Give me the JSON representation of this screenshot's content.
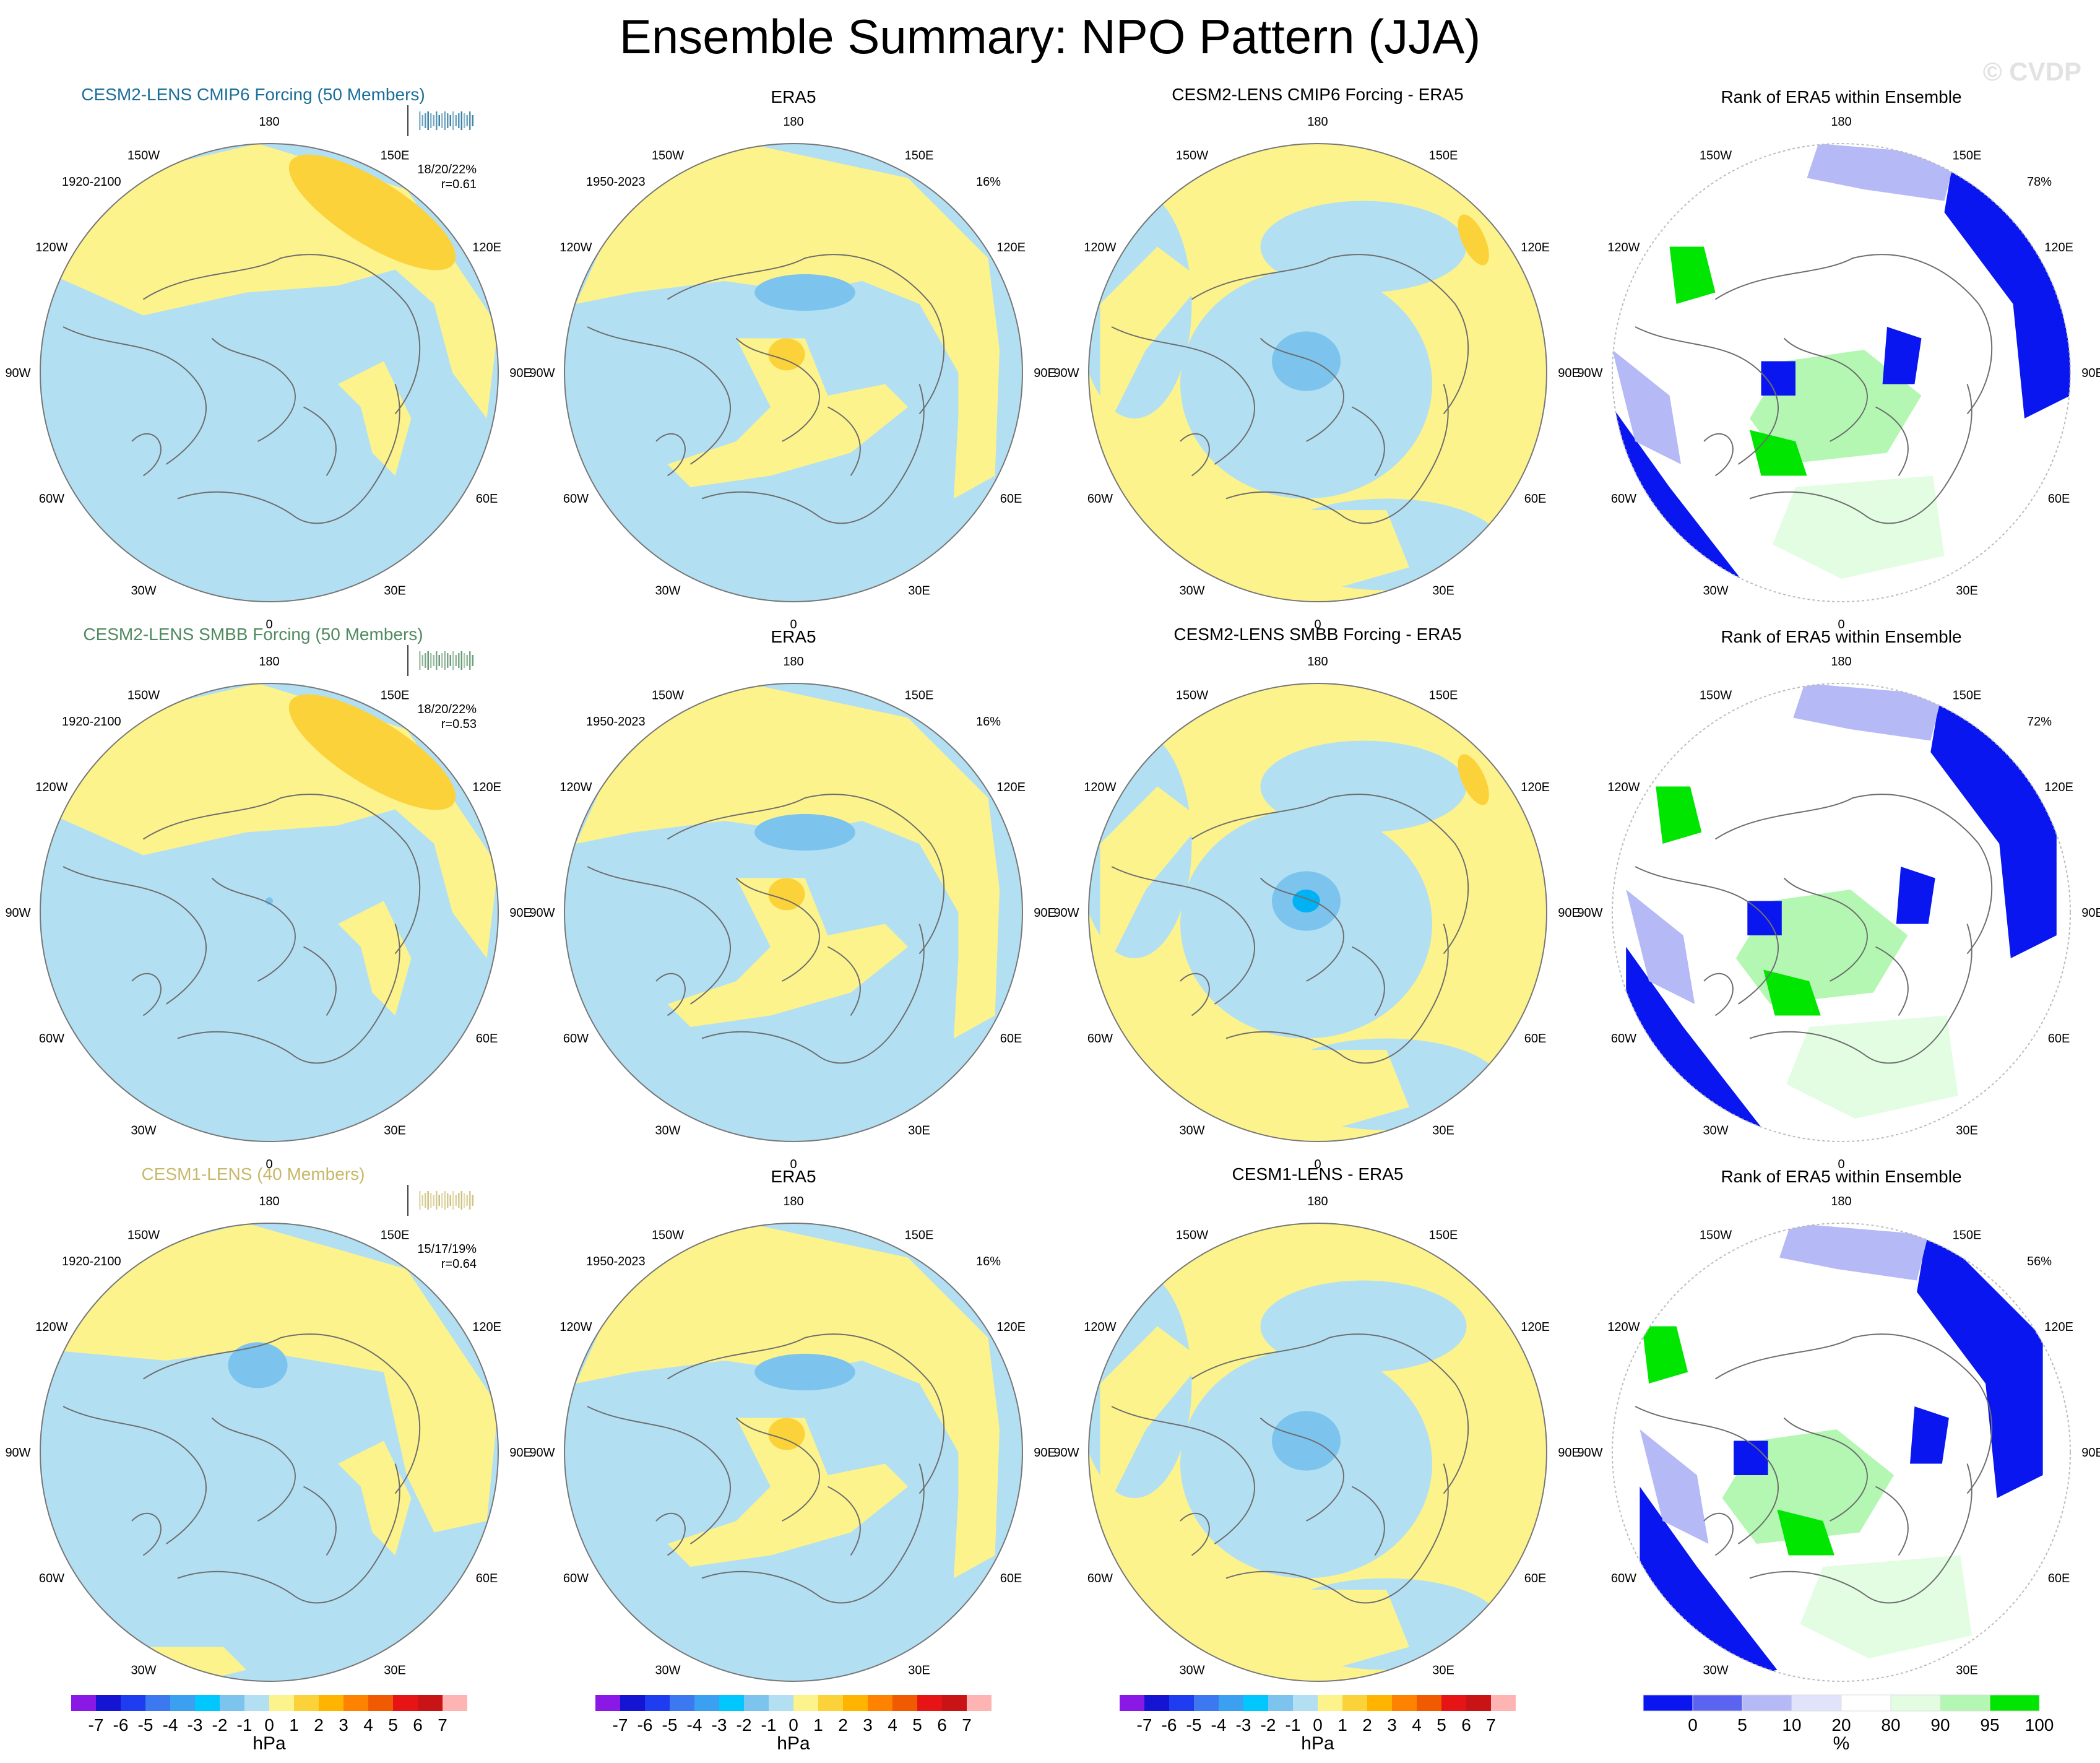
{
  "title": "Ensemble Summary: NPO Pattern (JJA)",
  "watermark": "© CVDP",
  "colors": {
    "model_title_1": "#1a6e9a",
    "model_title_2": "#4f8a5f",
    "model_title_3": "#c7b868",
    "land_outline": "#6e6e6e",
    "cat_neg_light": "#b3dff2",
    "cat_neg_mid": "#7cc4ed",
    "cat_neg_strong": "#00b2f4",
    "cat_pos_light": "#fdf38c",
    "cat_pos_mid": "#fcd23a",
    "rank_0": "#0a16f0",
    "rank_5": "#5a64f0",
    "rank_10": "#b5b9f5",
    "rank_20": "#e1e3fb",
    "rank_80": "#ffffff",
    "rank_90": "#e2fde2",
    "rank_95": "#b3f7b3",
    "rank_100": "#00e600"
  },
  "lon_labels": [
    "180",
    "150E",
    "120E",
    "90E",
    "60E",
    "30E",
    "0",
    "30W",
    "60W",
    "90W",
    "120W",
    "150W"
  ],
  "rows": [
    {
      "model": {
        "title": "CESM2-LENS CMIP6 Forcing (50 Members)",
        "period": "1920-2100",
        "stat": "18/20/22%",
        "corr": "r=0.61",
        "title_color": "#1a6e9a"
      },
      "obs": {
        "title": "ERA5",
        "period": "1950-2023",
        "pct": "16%"
      },
      "diff": {
        "title": "CESM2-LENS CMIP6 Forcing - ERA5"
      },
      "rank": {
        "title": "Rank of ERA5 within Ensemble",
        "pct": "78%"
      }
    },
    {
      "model": {
        "title": "CESM2-LENS SMBB Forcing (50 Members)",
        "period": "1920-2100",
        "stat": "18/20/22%",
        "corr": "r=0.53",
        "title_color": "#4f8a5f"
      },
      "obs": {
        "title": "ERA5",
        "period": "1950-2023",
        "pct": "16%"
      },
      "diff": {
        "title": "CESM2-LENS SMBB Forcing - ERA5"
      },
      "rank": {
        "title": "Rank of ERA5 within Ensemble",
        "pct": "72%"
      }
    },
    {
      "model": {
        "title": "CESM1-LENS (40 Members)",
        "period": "1920-2100",
        "stat": "15/17/19%",
        "corr": "r=0.64",
        "title_color": "#c7b868"
      },
      "obs": {
        "title": "ERA5",
        "period": "1950-2023",
        "pct": "16%"
      },
      "diff": {
        "title": "CESM1-LENS - ERA5"
      },
      "rank": {
        "title": "Rank of ERA5 within Ensemble",
        "pct": "56%"
      }
    }
  ],
  "colorbars": [
    {
      "unit": "hPa",
      "labels": [
        "-7",
        "-6",
        "-5",
        "-4",
        "-3",
        "-2",
        "-1",
        "0",
        "1",
        "2",
        "3",
        "4",
        "5",
        "6",
        "7"
      ],
      "colors": [
        "#8a19e6",
        "#1414d2",
        "#1e3cf0",
        "#3c78f0",
        "#3ca0f0",
        "#00c8ff",
        "#7cc4ed",
        "#b3dff2",
        "#fdf38c",
        "#fcd23a",
        "#ffb400",
        "#ff8200",
        "#f05a00",
        "#e61414",
        "#c81414",
        "#ffb4b4"
      ]
    },
    {
      "unit": "hPa",
      "labels": [
        "-7",
        "-6",
        "-5",
        "-4",
        "-3",
        "-2",
        "-1",
        "0",
        "1",
        "2",
        "3",
        "4",
        "5",
        "6",
        "7"
      ],
      "colors": [
        "#8a19e6",
        "#1414d2",
        "#1e3cf0",
        "#3c78f0",
        "#3ca0f0",
        "#00c8ff",
        "#7cc4ed",
        "#b3dff2",
        "#fdf38c",
        "#fcd23a",
        "#ffb400",
        "#ff8200",
        "#f05a00",
        "#e61414",
        "#c81414",
        "#ffb4b4"
      ]
    },
    {
      "unit": "hPa",
      "labels": [
        "-7",
        "-6",
        "-5",
        "-4",
        "-3",
        "-2",
        "-1",
        "0",
        "1",
        "2",
        "3",
        "4",
        "5",
        "6",
        "7"
      ],
      "colors": [
        "#8a19e6",
        "#1414d2",
        "#1e3cf0",
        "#3c78f0",
        "#3ca0f0",
        "#00c8ff",
        "#7cc4ed",
        "#b3dff2",
        "#fdf38c",
        "#fcd23a",
        "#ffb400",
        "#ff8200",
        "#f05a00",
        "#e61414",
        "#c81414",
        "#ffb4b4"
      ]
    },
    {
      "unit": "%",
      "labels": [
        "0",
        "5",
        "10",
        "20",
        "80",
        "90",
        "95",
        "100"
      ],
      "colors": [
        "#0a16f0",
        "#5a64f0",
        "#b5b9f5",
        "#e1e3fb",
        "#ffffff",
        "#e2fde2",
        "#b3f7b3",
        "#00e600"
      ]
    }
  ],
  "chart_data": {
    "type": "heatmap",
    "title": "Ensemble Summary: NPO Pattern (JJA)",
    "projection": "north polar stereographic",
    "panels": [
      {
        "row": 1,
        "col": 1,
        "title": "CESM2-LENS CMIP6 Forcing (50 Members)",
        "period": "1920-2100",
        "variance_pct": "18/20/22%",
        "pattern_corr": 0.61,
        "units": "hPa"
      },
      {
        "row": 1,
        "col": 2,
        "title": "ERA5",
        "period": "1950-2023",
        "variance_pct": "16%",
        "units": "hPa"
      },
      {
        "row": 1,
        "col": 3,
        "title": "CESM2-LENS CMIP6 Forcing - ERA5",
        "units": "hPa"
      },
      {
        "row": 1,
        "col": 4,
        "title": "Rank of ERA5 within Ensemble",
        "pct": "78%",
        "units": "%"
      },
      {
        "row": 2,
        "col": 1,
        "title": "CESM2-LENS SMBB Forcing (50 Members)",
        "period": "1920-2100",
        "variance_pct": "18/20/22%",
        "pattern_corr": 0.53,
        "units": "hPa"
      },
      {
        "row": 2,
        "col": 2,
        "title": "ERA5",
        "period": "1950-2023",
        "variance_pct": "16%",
        "units": "hPa"
      },
      {
        "row": 2,
        "col": 3,
        "title": "CESM2-LENS SMBB Forcing - ERA5",
        "units": "hPa"
      },
      {
        "row": 2,
        "col": 4,
        "title": "Rank of ERA5 within Ensemble",
        "pct": "72%",
        "units": "%"
      },
      {
        "row": 3,
        "col": 1,
        "title": "CESM1-LENS (40 Members)",
        "period": "1920-2100",
        "variance_pct": "15/17/19%",
        "pattern_corr": 0.64,
        "units": "hPa"
      },
      {
        "row": 3,
        "col": 2,
        "title": "ERA5",
        "period": "1950-2023",
        "variance_pct": "16%",
        "units": "hPa"
      },
      {
        "row": 3,
        "col": 3,
        "title": "CESM1-LENS - ERA5",
        "units": "hPa"
      },
      {
        "row": 3,
        "col": 4,
        "title": "Rank of ERA5 within Ensemble",
        "pct": "56%",
        "units": "%"
      }
    ],
    "colorbar_hpa": {
      "levels": [
        -7,
        -6,
        -5,
        -4,
        -3,
        -2,
        -1,
        0,
        1,
        2,
        3,
        4,
        5,
        6,
        7
      ],
      "units": "hPa"
    },
    "colorbar_rank": {
      "levels": [
        0,
        5,
        10,
        20,
        80,
        90,
        95,
        100
      ],
      "units": "%"
    }
  }
}
